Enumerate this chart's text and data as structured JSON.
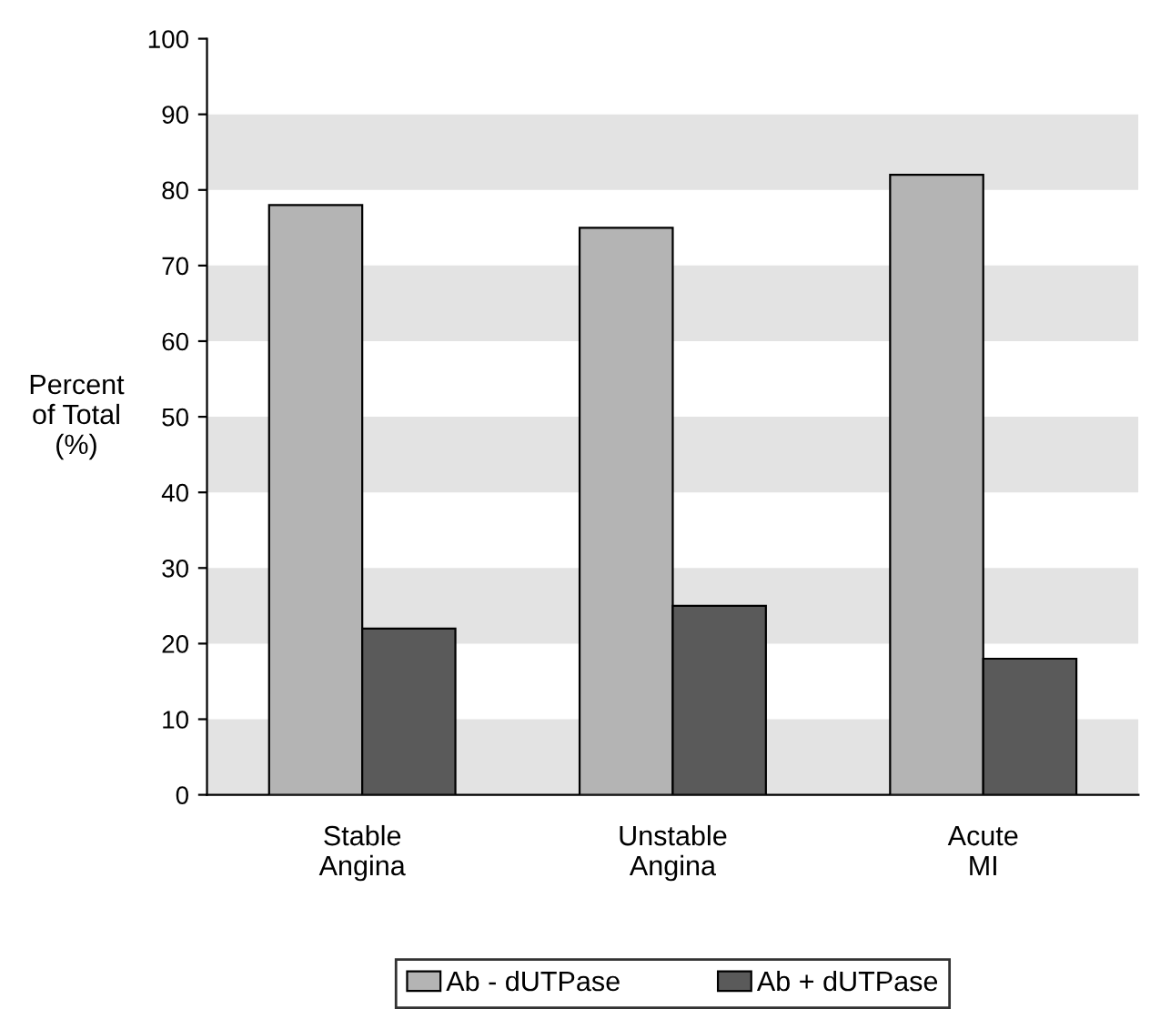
{
  "chart_data": {
    "type": "bar",
    "ylabel": "Percent\nof Total\n(%)",
    "categories": [
      "Stable\nAngina",
      "Unstable\nAngina",
      "Acute\nMI"
    ],
    "series": [
      {
        "name": "Ab - dUTPase",
        "color": "#b4b4b4",
        "values": [
          78,
          75,
          82
        ]
      },
      {
        "name": "Ab + dUTPase",
        "color": "#5a5a5a",
        "values": [
          22,
          25,
          18
        ]
      }
    ],
    "ylim": [
      0,
      100
    ],
    "yticks": [
      0,
      10,
      20,
      30,
      40,
      50,
      60,
      70,
      80,
      90,
      100
    ],
    "bands": [
      {
        "axis": "y",
        "from": 0,
        "to": 10,
        "color": "#e3e3e3"
      },
      {
        "axis": "y",
        "from": 20,
        "to": 30,
        "color": "#e3e3e3"
      },
      {
        "axis": "y",
        "from": 40,
        "to": 50,
        "color": "#e3e3e3"
      },
      {
        "axis": "y",
        "from": 60,
        "to": 70,
        "color": "#e3e3e3"
      },
      {
        "axis": "y",
        "from": 80,
        "to": 90,
        "color": "#e3e3e3"
      }
    ],
    "grid": false,
    "legend": "bottom"
  }
}
